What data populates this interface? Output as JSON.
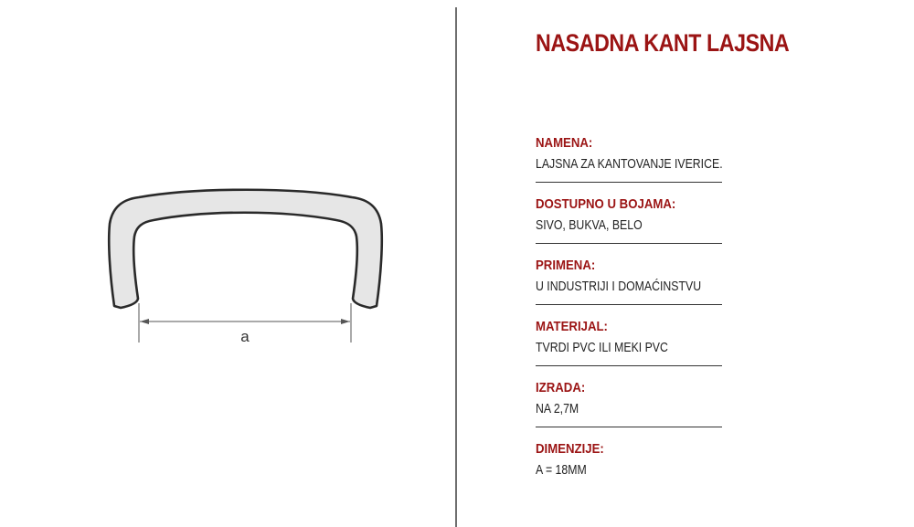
{
  "drawing": {
    "dimension_letter": "a",
    "profile_fill": "#e6e6e6",
    "profile_stroke": "#2a2a2a"
  },
  "title": "NASADNA KANT LAJSNA",
  "colors": {
    "accent": "#9b1414",
    "text": "#222222",
    "divider": "#6f6f6f"
  },
  "specs": [
    {
      "label": "NAMENA:",
      "value": "LAJSNA ZA KANTOVANJE IVERICE."
    },
    {
      "label": "DOSTUPNO U BOJAMA:",
      "value": "SIVO, BUKVA, BELO"
    },
    {
      "label": "PRIMENA:",
      "value": "U INDUSTRIJI I DOMAĆINSTVU"
    },
    {
      "label": "MATERIJAL:",
      "value": "TVRDI PVC ILI MEKI PVC"
    },
    {
      "label": "IZRADA:",
      "value": "NA 2,7M"
    },
    {
      "label": "DIMENZIJE:",
      "value": "A = 18MM"
    }
  ]
}
